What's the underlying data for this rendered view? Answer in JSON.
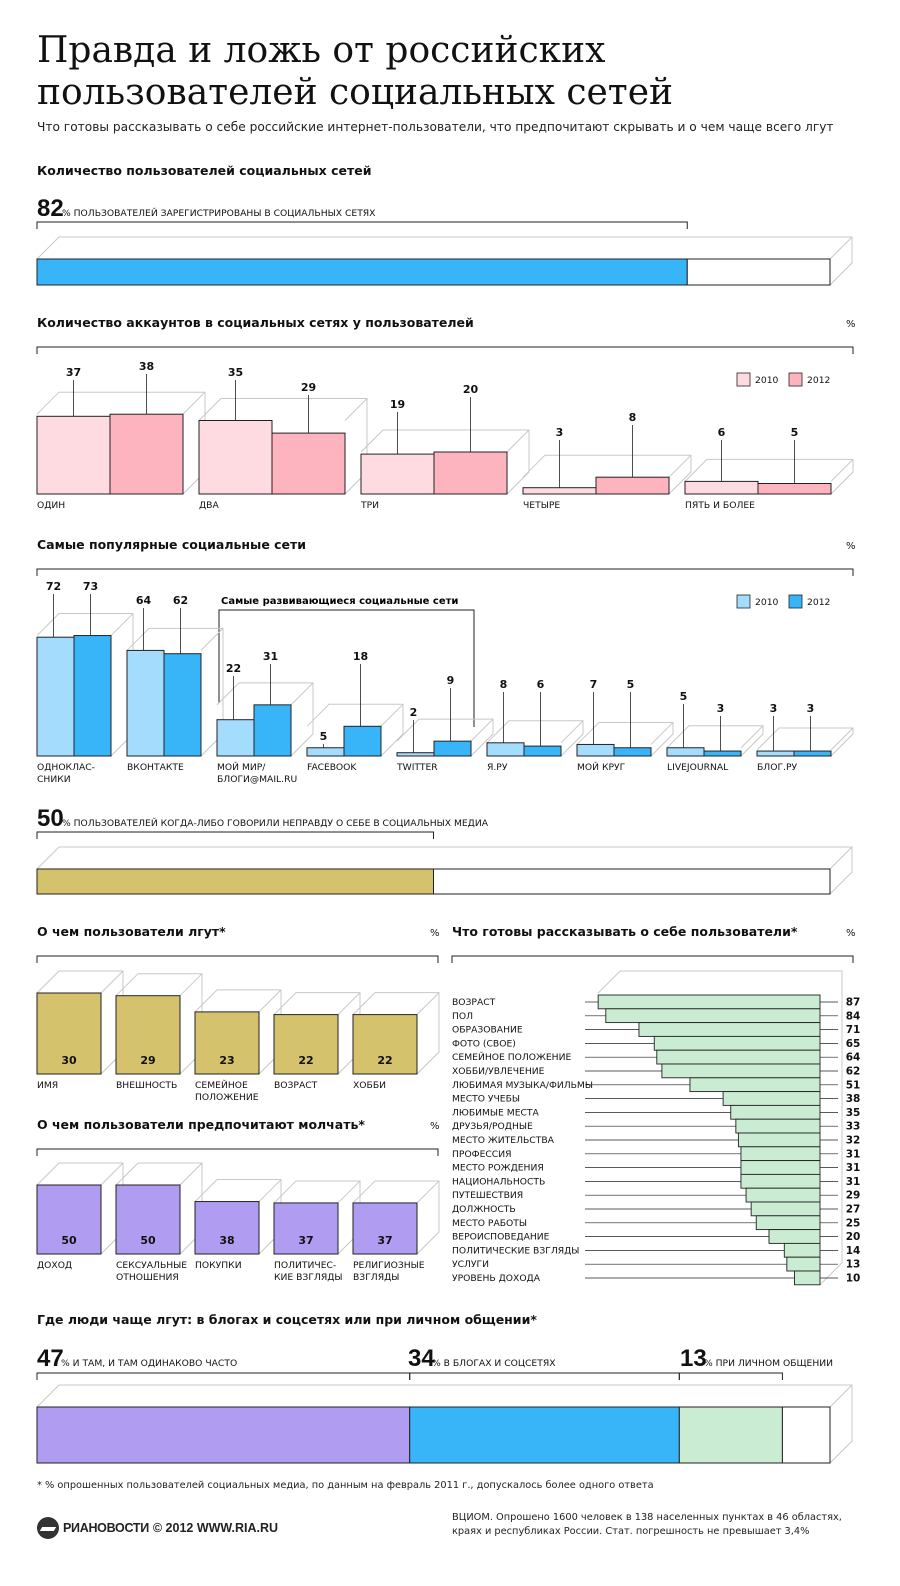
{
  "title": "Правда и ложь от российских пользователей социальных сетей",
  "subtitle": "Что готовы рассказывать о себе российские интернет-пользователи, что предпочитают скрывать и о чем чаще всего лгут",
  "pct_symbol": "%",
  "colors": {
    "blue": "#38b5f8",
    "light_blue": "#a4dcfe",
    "pink": "#feb4bf",
    "light_pink": "#fedbe0",
    "gold": "#d5c26d",
    "purple": "#b09df2",
    "light_green": "#c9ecd2",
    "bar_stroke": "#222222"
  },
  "sections": {
    "registered": {
      "title": "Количество пользователей социальных сетей",
      "value": "82",
      "caption": "% ПОЛЬЗОВАТЕЛЕЙ ЗАРЕГИСТРИРОВАНЫ В СОЦИАЛЬНЫХ СЕТЯХ"
    },
    "accounts": {
      "title": "Количество аккаунтов в социальных сетях у пользователей"
    },
    "popular": {
      "title": "Самые популярные социальные сети",
      "growing_label": "Самые развивающиеся социальные сети"
    },
    "lied": {
      "value": "50",
      "caption": "% ПОЛЬЗОВАТЕЛЕЙ КОГДА-ЛИБО ГОВОРИЛИ НЕПРАВДУ О СЕБЕ В СОЦИАЛЬНЫХ МЕДИА"
    },
    "lie_about": {
      "title": "О чем пользователи лгут*"
    },
    "silent": {
      "title": "О чем пользователи предпочитают молчать*"
    },
    "tell": {
      "title": "Что готовы рассказывать о себе пользователи*"
    },
    "where": {
      "title": "Где люди чаще лгут: в блогах и соцсетях или при личном общении*"
    }
  },
  "chart_data": [
    {
      "type": "bar",
      "title": "Количество пользователей социальных сетей",
      "categories": [
        "ПОЛЬЗОВАТЕЛЕЙ ЗАРЕГИСТРИРОВАНЫ В СОЦИАЛЬНЫХ СЕТЯХ"
      ],
      "values": [
        82
      ],
      "ylim": [
        0,
        100
      ]
    },
    {
      "type": "bar",
      "title": "Количество аккаунтов в социальных сетях у пользователей",
      "ylabel": "%",
      "categories": [
        "ОДИН",
        "ДВА",
        "ТРИ",
        "ЧЕТЫРЕ",
        "ПЯТЬ И БОЛЕЕ"
      ],
      "series": [
        {
          "name": "2010",
          "values": [
            37,
            35,
            19,
            3,
            6
          ]
        },
        {
          "name": "2012",
          "values": [
            38,
            29,
            20,
            8,
            5
          ]
        }
      ],
      "legend": "top-right"
    },
    {
      "type": "bar",
      "title": "Самые популярные социальные сети",
      "ylabel": "%",
      "categories": [
        "ОДНОКЛАС-\nСНИКИ",
        "ВКОНТАКТЕ",
        "МОЙ МИР/\nБЛОГИ@MAIL.RU",
        "FACEBOOK",
        "TWITTER",
        "Я.РУ",
        "МОЙ КРУГ",
        "LIVEJOURNAL",
        "БЛОГ.РУ"
      ],
      "series": [
        {
          "name": "2010",
          "values": [
            72,
            64,
            22,
            5,
            2,
            8,
            7,
            5,
            3
          ]
        },
        {
          "name": "2012",
          "values": [
            73,
            62,
            31,
            18,
            9,
            6,
            5,
            3,
            3
          ]
        }
      ],
      "legend": "top-right"
    },
    {
      "type": "bar",
      "title": "",
      "categories": [
        "ПОЛЬЗОВАТЕЛЕЙ КОГДА-ЛИБО ГОВОРИЛИ НЕПРАВДУ О СЕБЕ В СОЦИАЛЬНЫХ МЕДИА"
      ],
      "values": [
        50
      ],
      "ylim": [
        0,
        100
      ]
    },
    {
      "type": "bar",
      "title": "О чем пользователи лгут*",
      "ylabel": "%",
      "categories": [
        "ИМЯ",
        "ВНЕШНОСТЬ",
        "СЕМЕЙНОЕ\nПОЛОЖЕНИЕ",
        "ВОЗРАСТ",
        "ХОББИ"
      ],
      "values": [
        30,
        29,
        23,
        22,
        22
      ]
    },
    {
      "type": "bar",
      "title": "О чем пользователи предпочитают молчать*",
      "ylabel": "%",
      "categories": [
        "ДОХОД",
        "СЕКСУАЛЬНЫЕ\nОТНОШЕНИЯ",
        "ПОКУПКИ",
        "ПОЛИТИЧЕС-\nКИЕ ВЗГЛЯДЫ",
        "РЕЛИГИОЗНЫЕ\nВЗГЛЯДЫ"
      ],
      "values": [
        50,
        50,
        38,
        37,
        37
      ]
    },
    {
      "type": "bar",
      "title": "Что готовы рассказывать о себе пользователи*",
      "ylabel": "%",
      "categories": [
        "ВОЗРАСТ",
        "ПОЛ",
        "ОБРАЗОВАНИЕ",
        "ФОТО (СВОЕ)",
        "СЕМЕЙНОЕ ПОЛОЖЕНИЕ",
        "ХОББИ/УВЛЕЧЕНИЕ",
        "ЛЮБИМАЯ МУЗЫКА/ФИЛЬМЫ",
        "МЕСТО УЧЕБЫ",
        "ЛЮБИМЫЕ МЕСТА",
        "ДРУЗЬЯ/РОДНЫЕ",
        "МЕСТО ЖИТЕЛЬСТВА",
        "ПРОФЕССИЯ",
        "МЕСТО РОЖДЕНИЯ",
        "НАЦИОНАЛЬНОСТЬ",
        "ПУТЕШЕСТВИЯ",
        "ДОЛЖНОСТЬ",
        "МЕСТО РАБОТЫ",
        "ВЕРОИСПОВЕДАНИЕ",
        "ПОЛИТИЧЕСКИЕ ВЗГЛЯДЫ",
        "УСЛУГИ",
        "УРОВЕНЬ ДОХОДА"
      ],
      "values": [
        87,
        84,
        71,
        65,
        64,
        62,
        51,
        38,
        35,
        33,
        32,
        31,
        31,
        31,
        29,
        27,
        25,
        20,
        14,
        13,
        10
      ]
    },
    {
      "type": "bar",
      "title": "Где люди чаще лгут: в блогах и соцсетях или при личном общении*",
      "categories": [
        "И ТАМ, И ТАМ ОДИНАКОВО ЧАСТО",
        "В БЛОГАХ И СОЦСЕТЯХ",
        "ПРИ ЛИЧНОМ ОБЩЕНИИ"
      ],
      "values": [
        47,
        34,
        13
      ],
      "ylim": [
        0,
        100
      ]
    }
  ],
  "footnote": "* % опрошенных пользователей социальных медиа, по данным на февраль 2011 г., допускалось более одного ответа",
  "source": "ВЦИОМ. Опрошено 1600 человек в 138 населенных пунктах в 46 областях, краях и республиках России. Стат. погрешность не превышает 3,4%",
  "logo": {
    "brand": "РИАНОВОСТИ",
    "copyright": "© 2012 WWW.RIA.RU"
  }
}
